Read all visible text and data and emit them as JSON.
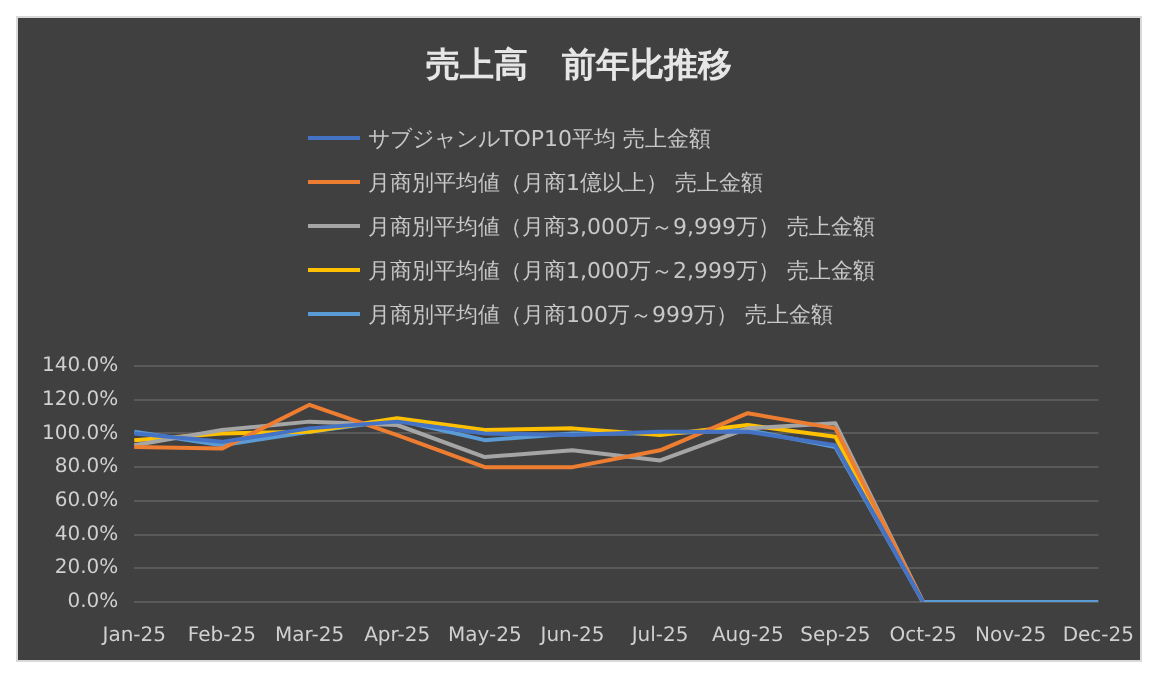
{
  "chart_data": {
    "type": "line",
    "title": "売上高　前年比推移",
    "categories": [
      "Jan-25",
      "Feb-25",
      "Mar-25",
      "Apr-25",
      "May-25",
      "Jun-25",
      "Jul-25",
      "Aug-25",
      "Sep-25",
      "Oct-25",
      "Nov-25",
      "Dec-25"
    ],
    "series": [
      {
        "name": "サブジャンルTOP10平均 売上金額",
        "color": "#4472c4",
        "values": [
          100,
          95,
          103,
          107,
          100,
          99,
          101,
          101,
          93,
          0,
          null,
          null
        ]
      },
      {
        "name": "月商別平均値（月商1億以上） 売上金額",
        "color": "#ed7d31",
        "values": [
          92,
          91,
          117,
          99,
          80,
          80,
          90,
          112,
          103,
          0,
          null,
          null
        ]
      },
      {
        "name": "月商別平均値（月商3,000万～9,999万） 売上金額",
        "color": "#a5a5a5",
        "values": [
          93,
          102,
          107,
          105,
          86,
          90,
          84,
          103,
          106,
          0,
          null,
          null
        ]
      },
      {
        "name": "月商別平均値（月商1,000万～2,999万） 売上金額",
        "color": "#ffc000",
        "values": [
          96,
          100,
          101,
          109,
          102,
          103,
          99,
          105,
          98,
          0,
          null,
          null
        ]
      },
      {
        "name": "月商別平均値（月商100万～999万） 売上金額",
        "color": "#5b9bd5",
        "values": [
          101,
          93,
          101,
          108,
          96,
          100,
          100,
          102,
          92,
          0,
          0,
          0
        ]
      }
    ],
    "ylim": [
      0,
      140
    ],
    "yticks": [
      {
        "value": 0,
        "label": "0.0%"
      },
      {
        "value": 20,
        "label": "20.0%"
      },
      {
        "value": 40,
        "label": "40.0%"
      },
      {
        "value": 60,
        "label": "60.0%"
      },
      {
        "value": 80,
        "label": "80.0%"
      },
      {
        "value": 100,
        "label": "100.0%"
      },
      {
        "value": 120,
        "label": "120.0%"
      },
      {
        "value": 140,
        "label": "140.0%"
      }
    ],
    "grid": "y",
    "legend": "top",
    "marker": "none",
    "line_style": "solid"
  }
}
